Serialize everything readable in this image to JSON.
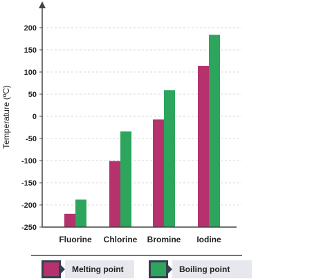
{
  "chart_data": {
    "type": "bar",
    "categories": [
      "Fluorine",
      "Chlorine",
      "Bromine",
      "Iodine"
    ],
    "series": [
      {
        "name": "Melting point",
        "values": [
          -220,
          -101,
          -7,
          114
        ],
        "color": "#b5326d"
      },
      {
        "name": "Boiling point",
        "values": [
          -188,
          -34,
          59,
          184
        ],
        "color": "#2da55d"
      }
    ],
    "ylabel": "Temperature (ºC)",
    "xlabel": "",
    "title": "",
    "ylim": [
      -250,
      200
    ],
    "yticks": [
      200,
      150,
      100,
      50,
      0,
      -50,
      -100,
      -150,
      -200,
      -250
    ],
    "grid": true,
    "legend_position": "bottom"
  },
  "legend": {
    "melting_label": "Melting point",
    "boiling_label": "Boiling point"
  },
  "colors": {
    "axis": "#444444",
    "grid": "#d8d8d8",
    "legend_border": "#333f4f"
  }
}
